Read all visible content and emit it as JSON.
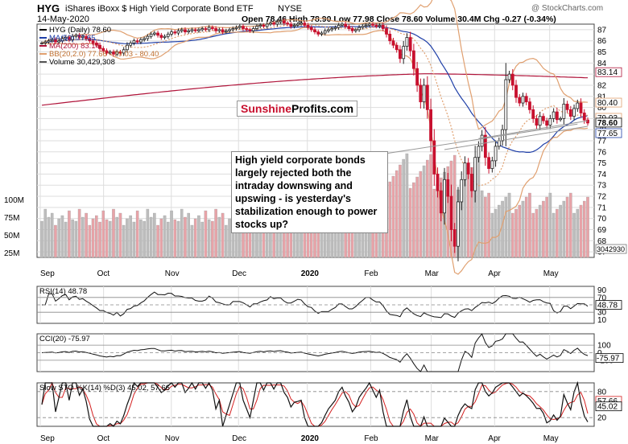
{
  "header": {
    "symbol": "HYG",
    "name": "iShares iBoxx $ High Yield Corporate Bond ETF",
    "exchange": "NYSE",
    "date": "14-May-2020",
    "ohlc": "Open 78.46  High 78.90  Low 77.98  Close 78.60  Volume 30.4M  Chg -0.27 (-0.34%)",
    "watermark": "@ StockCharts.com"
  },
  "legend": {
    "price": "HYG (Daily) 78.60",
    "ma50": "MA(50) 77.65",
    "ma200": "MA(200) 83.14",
    "bb": "BB(20,2.0) 77.66 - 79.03 - 80.40",
    "volume": "Volume 30,429,308"
  },
  "colors": {
    "up": "#222222",
    "down": "#c8102e",
    "ma50": "#1f3fa8",
    "ma200": "#b0143a",
    "bb": "#e0a070",
    "volume_up": "#bdbdbd",
    "volume_down": "#e8a3a8",
    "grid": "#dddddd",
    "indicator_fill_pos": "#2e6b2e",
    "indicator_fill_neg": "#7a2a2a"
  },
  "brand": {
    "part1": "Sunshine",
    "part2": "Profits.com"
  },
  "callout": "High yield corporate bonds largely rejected both the intraday downswing and upswing - is yesterday's stabilization enough to power stocks up?",
  "x_labels": [
    "Sep",
    "Oct",
    "Nov",
    "Dec",
    "2020",
    "Feb",
    "Mar",
    "Apr",
    "May"
  ],
  "chart_data": {
    "type": "candlestick",
    "date_range": [
      "2019-09",
      "2020-05-14"
    ],
    "price_axis": {
      "ticks": [
        67,
        68,
        69,
        70,
        71,
        72,
        73,
        74,
        75,
        76,
        77,
        78,
        79,
        80,
        81,
        82,
        83,
        84,
        85,
        86,
        87
      ],
      "range": [
        66.5,
        87.5
      ]
    },
    "volume_axis": {
      "ticks": [
        "25M",
        "50M",
        "75M",
        "100M"
      ]
    },
    "last_values": {
      "ma200": "83.14",
      "bb_upper": "80.40",
      "bb_mid": "79.03",
      "close": "78.60",
      "ma50": "77.65",
      "volume": "30429308"
    },
    "close": [
      85.8,
      85.9,
      86.0,
      86.1,
      85.9,
      86.0,
      86.2,
      86.3,
      86.1,
      86.4,
      86.5,
      86.3,
      86.4,
      86.2,
      86.0,
      85.8,
      85.6,
      85.3,
      85.1,
      84.9,
      85.0,
      84.8,
      85.0,
      84.9,
      85.2,
      85.6,
      85.8,
      86.0,
      85.9,
      86.1,
      86.2,
      86.4,
      86.6,
      86.7,
      86.5,
      86.3,
      86.4,
      86.6,
      86.8,
      86.7,
      86.9,
      87.0,
      86.8,
      86.9,
      87.0,
      86.9,
      87.0,
      87.1,
      87.0,
      87.2,
      87.1,
      86.9,
      87.0,
      86.8,
      86.9,
      87.0,
      87.1,
      87.2,
      87.3,
      87.1,
      87.0,
      86.9,
      87.1,
      87.3,
      87.4,
      87.3,
      87.5,
      87.6,
      87.5,
      87.7,
      87.8,
      87.6,
      87.5,
      87.3,
      87.4,
      87.5,
      87.6,
      87.4,
      87.2,
      87.0,
      86.8,
      86.6,
      86.7,
      86.9,
      87.0,
      87.1,
      87.2,
      87.4,
      87.5,
      87.3,
      87.1,
      86.9,
      87.0,
      87.2,
      87.3,
      87.4,
      87.5,
      87.4,
      87.3,
      87.4,
      87.1,
      86.6,
      86.0,
      85.6,
      85.2,
      84.4,
      85.5,
      86.3,
      85.1,
      83.5,
      82.0,
      80.5,
      82.0,
      79.8,
      77.0,
      74.0,
      72.5,
      70.5,
      73.5,
      72.0,
      69.0,
      67.5,
      71.5,
      73.5,
      75.0,
      74.0,
      72.5,
      75.5,
      76.5,
      77.5,
      75.5,
      74.5,
      75.2,
      76.5,
      77.0,
      78.0,
      82.5,
      83.0,
      82.0,
      80.9,
      80.4,
      81.0,
      80.5,
      79.8,
      79.0,
      78.4,
      79.2,
      78.8,
      78.4,
      79.0,
      79.6,
      78.9,
      79.0,
      80.3,
      79.8,
      79.2,
      79.9,
      80.4,
      79.5,
      78.87,
      78.6
    ],
    "ma50_end": 77.65,
    "ma200_end": 83.14,
    "indicators": {
      "rsi": {
        "label": "RSI(14) 48.78",
        "value": 48.78,
        "ticks": [
          "90",
          "70",
          "50",
          "30",
          "10"
        ]
      },
      "cci": {
        "label": "CCI(20) -75.97",
        "value": -75.97,
        "ticks": [
          "100",
          "0",
          "-100"
        ]
      },
      "stoch": {
        "label": "Slow STO %K(14) %D(3) 45.02, 57.66",
        "k": 45.02,
        "d": 57.66,
        "ticks": [
          "80",
          "20"
        ]
      }
    }
  }
}
